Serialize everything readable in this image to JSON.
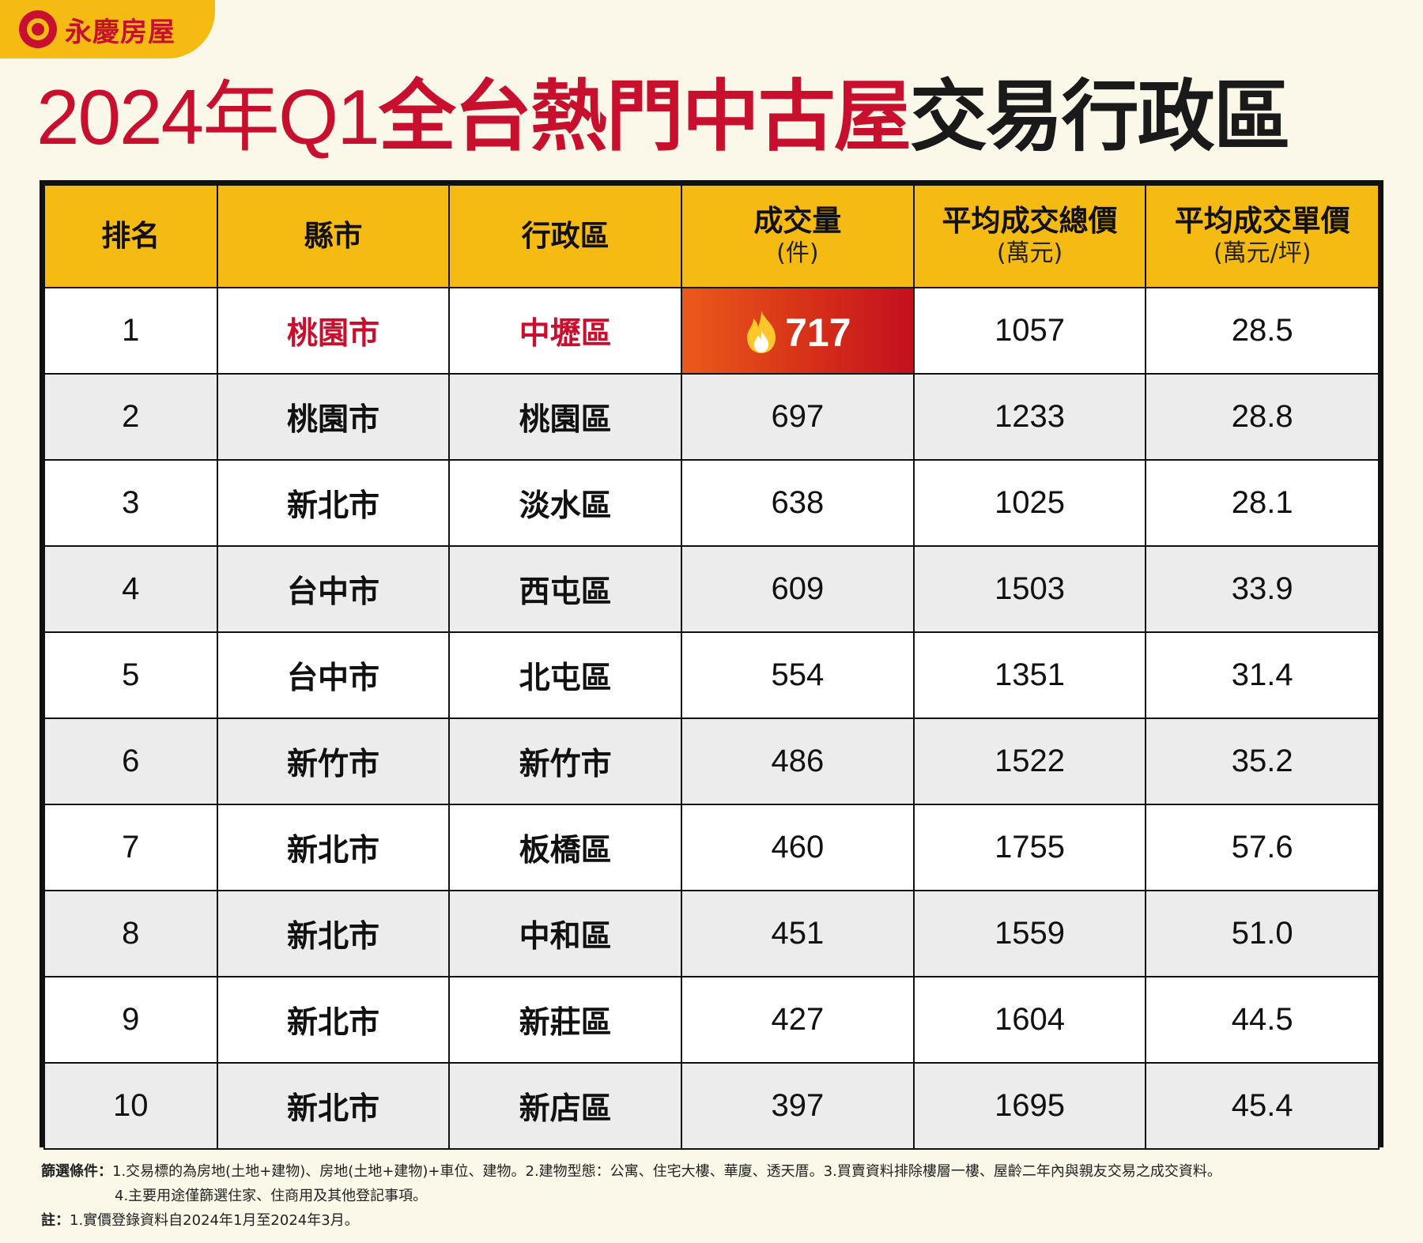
{
  "brand": {
    "name": "永慶房屋"
  },
  "title": {
    "part1": "2024年Q1",
    "part2": "全台熱門中古屋",
    "part3": "交易行政區"
  },
  "colors": {
    "brand_red": "#c8102e",
    "header_yellow": "#f6bb12",
    "hot_gradient": [
      "#ea5a1a",
      "#c3101f"
    ]
  },
  "table": {
    "headers": [
      {
        "label": "排名",
        "sub": ""
      },
      {
        "label": "縣市",
        "sub": ""
      },
      {
        "label": "行政區",
        "sub": ""
      },
      {
        "label": "成交量",
        "sub": "(件)"
      },
      {
        "label": "平均成交總價",
        "sub": "(萬元)"
      },
      {
        "label": "平均成交單價",
        "sub": "(萬元/坪)"
      }
    ],
    "highlight_icon": "flame-icon"
  },
  "chart_data": {
    "type": "table",
    "title": "2024年Q1全台熱門中古屋交易行政區",
    "columns": [
      "排名",
      "縣市",
      "行政區",
      "成交量(件)",
      "平均成交總價(萬元)",
      "平均成交單價(萬元/坪)"
    ],
    "rows": [
      {
        "rank": "1",
        "city": "桃園市",
        "district": "中壢區",
        "volume": "717",
        "total_price": "1057",
        "unit_price": "28.5"
      },
      {
        "rank": "2",
        "city": "桃園市",
        "district": "桃園區",
        "volume": "697",
        "total_price": "1233",
        "unit_price": "28.8"
      },
      {
        "rank": "3",
        "city": "新北市",
        "district": "淡水區",
        "volume": "638",
        "total_price": "1025",
        "unit_price": "28.1"
      },
      {
        "rank": "4",
        "city": "台中市",
        "district": "西屯區",
        "volume": "609",
        "total_price": "1503",
        "unit_price": "33.9"
      },
      {
        "rank": "5",
        "city": "台中市",
        "district": "北屯區",
        "volume": "554",
        "total_price": "1351",
        "unit_price": "31.4"
      },
      {
        "rank": "6",
        "city": "新竹市",
        "district": "新竹市",
        "volume": "486",
        "total_price": "1522",
        "unit_price": "35.2"
      },
      {
        "rank": "7",
        "city": "新北市",
        "district": "板橋區",
        "volume": "460",
        "total_price": "1755",
        "unit_price": "57.6"
      },
      {
        "rank": "8",
        "city": "新北市",
        "district": "中和區",
        "volume": "451",
        "total_price": "1559",
        "unit_price": "51.0"
      },
      {
        "rank": "9",
        "city": "新北市",
        "district": "新莊區",
        "volume": "427",
        "total_price": "1604",
        "unit_price": "44.5"
      },
      {
        "rank": "10",
        "city": "新北市",
        "district": "新店區",
        "volume": "397",
        "total_price": "1695",
        "unit_price": "45.4"
      }
    ]
  },
  "notes": {
    "filter_label": "篩選條件：",
    "filter_line1": "1.交易標的為房地(土地+建物)、房地(土地+建物)+車位、建物。2.建物型態：公寓、住宅大樓、華廈、透天厝。3.買賣資料排除樓層一樓、屋齡二年內與親友交易之成交資料。",
    "filter_line2": "4.主要用途僅篩選住家、住商用及其他登記事項。",
    "note_label": "註：",
    "note_line1": "1.實價登錄資料自2024年1月至2024年3月。"
  }
}
